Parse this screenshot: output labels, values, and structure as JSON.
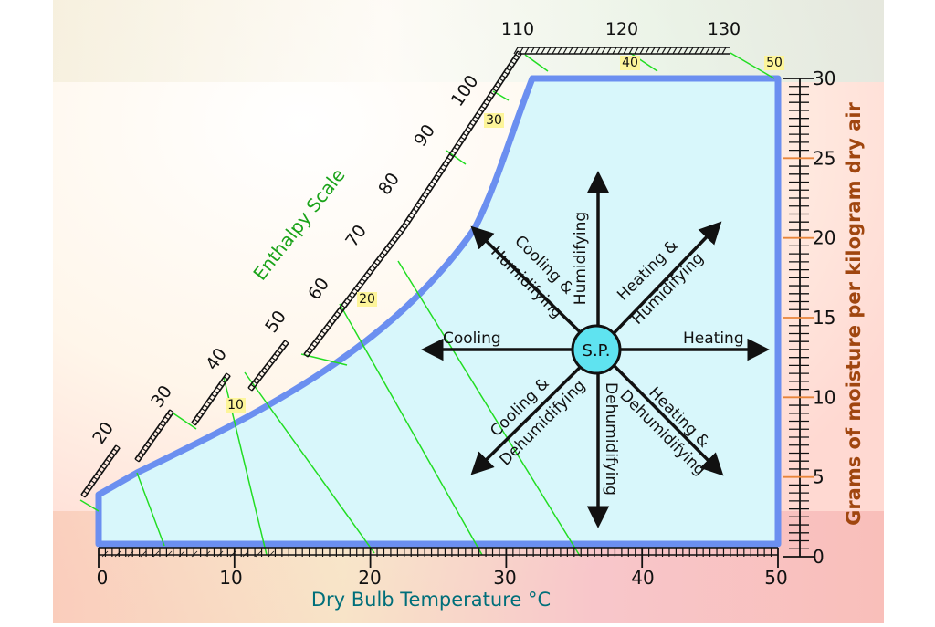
{
  "diagram": {
    "x_axis": {
      "title": "Dry Bulb Temperature °C",
      "ticks": [
        "0",
        "10",
        "20",
        "30",
        "40",
        "50"
      ]
    },
    "y_axis": {
      "title": "Grams of moisture per kilogram dry air",
      "ticks": [
        "0",
        "5",
        "10",
        "15",
        "20",
        "25",
        "30"
      ]
    },
    "enthalpy": {
      "title": "Enthalpy Scale",
      "outer_labels": [
        "20",
        "30",
        "40",
        "50",
        "60",
        "70",
        "80",
        "90",
        "100",
        "110",
        "120",
        "130"
      ],
      "inner_labels": [
        "10",
        "20",
        "30",
        "40",
        "50"
      ]
    },
    "center": "S.P.",
    "processes": {
      "heating": "Heating",
      "cooling": "Cooling",
      "humidifying": "Humidifying",
      "dehumidifying": "Dehumidifying",
      "heating_humidifying": [
        "Heating &",
        "Humidifying"
      ],
      "cooling_humidifying": [
        "Cooling &",
        "Humidifying"
      ],
      "heating_dehumidifying": [
        "Heating &",
        "Dehumidifying"
      ],
      "cooling_dehumidifying": [
        "Cooling &",
        "Dehumidifying"
      ]
    },
    "colors": {
      "chart_border": "#6b8ff0",
      "chart_fill": "#d8f7fb",
      "enthalpy_lines": "#22dd22",
      "center_fill": "#5fe3f0",
      "scale_title": "#1aa31a",
      "axis_title_x": "#006f7a",
      "axis_title_y": "#a0460f"
    }
  }
}
